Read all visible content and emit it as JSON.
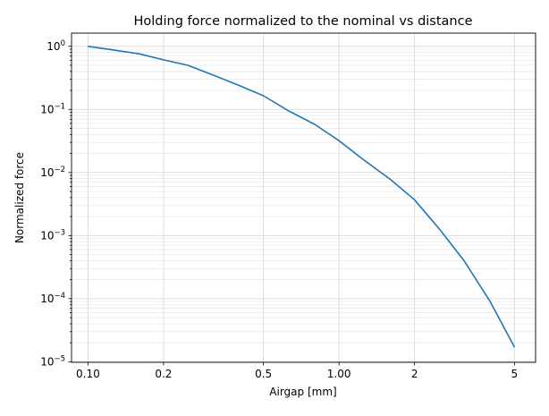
{
  "chart_data": {
    "type": "line",
    "title": "Holding force normalized to the nominal vs distance",
    "xlabel": "Airgap [mm]",
    "ylabel": "Normalized force",
    "xscale": "log",
    "yscale": "log",
    "xlim": [
      0.086,
      6.07
    ],
    "ylim": [
      9.8e-06,
      1.62
    ],
    "grid": true,
    "x_ticks": [
      {
        "value": 0.1,
        "label": "0.10"
      },
      {
        "value": 0.2,
        "label": "0.2"
      },
      {
        "value": 0.5,
        "label": "0.5"
      },
      {
        "value": 1.0,
        "label": "1.00"
      },
      {
        "value": 2,
        "label": "2"
      },
      {
        "value": 5,
        "label": "5"
      }
    ],
    "y_ticks": [
      {
        "value": 1,
        "base": "10",
        "exp": "0"
      },
      {
        "value": 0.1,
        "base": "10",
        "exp": "−1"
      },
      {
        "value": 0.01,
        "base": "10",
        "exp": "−2"
      },
      {
        "value": 0.001,
        "base": "10",
        "exp": "−3"
      },
      {
        "value": 0.0001,
        "base": "10",
        "exp": "−4"
      },
      {
        "value": 1e-05,
        "base": "10",
        "exp": "−5"
      }
    ],
    "series": [
      {
        "name": "Normalized force",
        "color": "#1f77b4",
        "x": [
          0.1,
          0.125,
          0.16,
          0.2,
          0.25,
          0.315,
          0.4,
          0.5,
          0.63,
          0.8,
          1.0,
          1.25,
          1.6,
          2,
          2.5,
          3.15,
          4,
          5
        ],
        "y": [
          1.0,
          0.88,
          0.76,
          0.61,
          0.5,
          0.35,
          0.24,
          0.165,
          0.095,
          0.058,
          0.032,
          0.016,
          0.0078,
          0.0037,
          0.0013,
          0.0004,
          9e-05,
          1.7e-05
        ]
      }
    ]
  }
}
